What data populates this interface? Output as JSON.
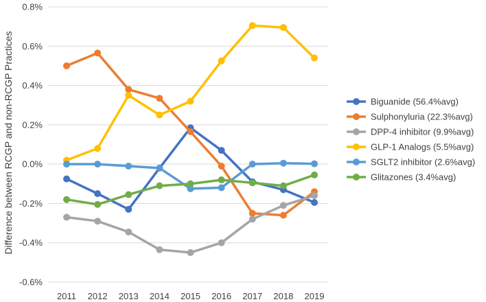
{
  "chart_data": {
    "type": "line",
    "title": "",
    "xlabel": "",
    "ylabel": "Difference between RCGP and non-RCGP Practices",
    "ylim": [
      -0.6,
      0.8
    ],
    "yticks": [
      -0.6,
      -0.4,
      -0.2,
      0.0,
      0.2,
      0.4,
      0.6,
      0.8
    ],
    "ytick_labels": [
      "-0.6%",
      "-0.4%",
      "-0.2%",
      "0.0%",
      "0.2%",
      "0.4%",
      "0.6%",
      "0.8%"
    ],
    "grid": "horizontal",
    "legend_position": "right",
    "x": [
      "2011",
      "2012",
      "2013",
      "2014",
      "2015",
      "2016",
      "2017",
      "2018",
      "2019"
    ],
    "series": [
      {
        "name": "Biguanide (56.4%avg)",
        "color": "#4472C4",
        "values": [
          -0.075,
          -0.15,
          -0.23,
          -0.02,
          0.185,
          0.07,
          -0.09,
          -0.13,
          -0.195
        ]
      },
      {
        "name": "Sulphonyluria (22.3%avg)",
        "color": "#ED7D31",
        "values": [
          0.5,
          0.565,
          0.38,
          0.335,
          0.165,
          -0.01,
          -0.25,
          -0.26,
          -0.14
        ]
      },
      {
        "name": "DPP-4 inhibitor (9.9%avg)",
        "color": "#A5A5A5",
        "values": [
          -0.27,
          -0.29,
          -0.345,
          -0.435,
          -0.45,
          -0.4,
          -0.28,
          -0.21,
          -0.16
        ]
      },
      {
        "name": "GLP-1 Analogs (5.5%avg)",
        "color": "#FFC000",
        "values": [
          0.02,
          0.08,
          0.35,
          0.25,
          0.32,
          0.525,
          0.705,
          0.695,
          0.54
        ]
      },
      {
        "name": "SGLT2 inhibitor (2.6%avg)",
        "color": "#5B9BD5",
        "values": [
          0.0,
          0.0,
          -0.01,
          -0.02,
          -0.125,
          -0.12,
          0.0,
          0.005,
          0.002
        ]
      },
      {
        "name": "Glitazones (3.4%avg)",
        "color": "#70AD47",
        "values": [
          -0.18,
          -0.205,
          -0.155,
          -0.11,
          -0.1,
          -0.08,
          -0.095,
          -0.11,
          -0.055
        ]
      }
    ]
  }
}
